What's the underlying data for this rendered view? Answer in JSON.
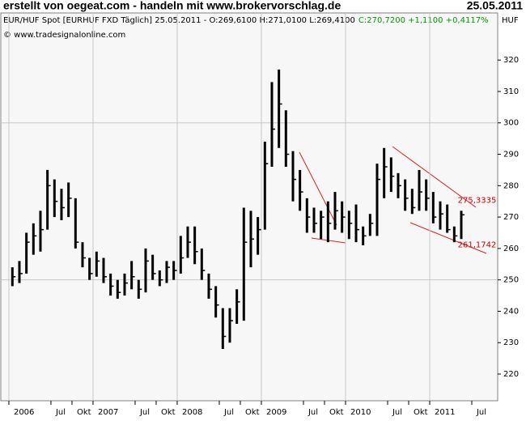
{
  "chart_data": {
    "type": "hlc",
    "title": "erstellt von oegeat.com - handeln mit www.brokervorschlag.de",
    "date": "25.05.2011",
    "instrument": "EUR/HUF Spot [EURHUF FXD  Täglich] 25.05.2011 - O:269,6100 H:271,0100 L:269,4100",
    "change": "C:270,7200 +1,1100 +0,4117%",
    "currency": "HUF",
    "source": "© www.tradesignalonline.com",
    "color": "#000000",
    "x": [
      "2006-01",
      "2006-02",
      "2006-03",
      "2006-04",
      "2006-05",
      "2006-06",
      "2006-07",
      "2006-08",
      "2006-09",
      "2006-10",
      "2006-11",
      "2006-12",
      "2007-01",
      "2007-02",
      "2007-03",
      "2007-04",
      "2007-05",
      "2007-06",
      "2007-07",
      "2007-08",
      "2007-09",
      "2007-10",
      "2007-11",
      "2007-12",
      "2008-01",
      "2008-02",
      "2008-03",
      "2008-04",
      "2008-05",
      "2008-06",
      "2008-07",
      "2008-08",
      "2008-09",
      "2008-10",
      "2008-11",
      "2008-12",
      "2009-01",
      "2009-02",
      "2009-03",
      "2009-04",
      "2009-05",
      "2009-06",
      "2009-07",
      "2009-08",
      "2009-09",
      "2009-10",
      "2009-11",
      "2009-12",
      "2010-01",
      "2010-02",
      "2010-03",
      "2010-04",
      "2010-05",
      "2010-06",
      "2010-07",
      "2010-08",
      "2010-09",
      "2010-10",
      "2010-11",
      "2010-12",
      "2011-01",
      "2011-02",
      "2011-03",
      "2011-04",
      "2011-05"
    ],
    "high": [
      254,
      256,
      265,
      268,
      272,
      285,
      282,
      279,
      281,
      276,
      262,
      257,
      259,
      257,
      252,
      250,
      252,
      256,
      250,
      260,
      258,
      253,
      256,
      256,
      264,
      267,
      267,
      260,
      252,
      248,
      241,
      241,
      247,
      273,
      272,
      270,
      294,
      313,
      317,
      304,
      291,
      285,
      276,
      273,
      272,
      275,
      278,
      275,
      272,
      274,
      267,
      271,
      287,
      292,
      289,
      284,
      282,
      279,
      285,
      282,
      278,
      275,
      274,
      267,
      272
    ],
    "low": [
      248,
      249,
      252,
      258,
      259,
      266,
      270,
      269,
      270,
      260,
      254,
      250,
      251,
      249,
      245,
      244,
      245,
      247,
      244,
      246,
      250,
      248,
      249,
      250,
      252,
      257,
      255,
      250,
      244,
      238,
      228,
      230,
      236,
      237,
      254,
      258,
      266,
      286,
      292,
      286,
      275,
      272,
      265,
      265,
      263,
      262,
      266,
      265,
      263,
      262,
      261,
      264,
      264,
      276,
      278,
      276,
      272,
      271,
      272,
      272,
      268,
      266,
      265,
      262,
      263
    ],
    "close": [
      251,
      252,
      262,
      264,
      266,
      280,
      275,
      273,
      276,
      262,
      257,
      252,
      256,
      251,
      248,
      246,
      249,
      251,
      247,
      256,
      252,
      250,
      254,
      253,
      257,
      262,
      259,
      253,
      247,
      242,
      232,
      237,
      243,
      262,
      263,
      266,
      287,
      298,
      306,
      290,
      282,
      278,
      270,
      268,
      270,
      268,
      272,
      270,
      268,
      266,
      264,
      268,
      282,
      286,
      283,
      280,
      276,
      273,
      278,
      276,
      270,
      271,
      266,
      264,
      270.72
    ],
    "xlim": [
      "2005-12",
      "2011-10"
    ],
    "xticks": [
      {
        "value": "2006-01",
        "label": "2006"
      },
      {
        "value": "2006-07",
        "label": "Jul"
      },
      {
        "value": "2006-10",
        "label": "Okt"
      },
      {
        "value": "2007-01",
        "label": "2007"
      },
      {
        "value": "2007-07",
        "label": "Jul"
      },
      {
        "value": "2007-10",
        "label": "Okt"
      },
      {
        "value": "2008-01",
        "label": "2008"
      },
      {
        "value": "2008-07",
        "label": "Jul"
      },
      {
        "value": "2008-10",
        "label": "Okt"
      },
      {
        "value": "2009-01",
        "label": "2009"
      },
      {
        "value": "2009-07",
        "label": "Jul"
      },
      {
        "value": "2009-10",
        "label": "Okt"
      },
      {
        "value": "2010-01",
        "label": "2010"
      },
      {
        "value": "2010-07",
        "label": "Jul"
      },
      {
        "value": "2010-10",
        "label": "Okt"
      },
      {
        "value": "2011-01",
        "label": "2011"
      },
      {
        "value": "2011-07",
        "label": "Jul"
      }
    ],
    "ylim": [
      211.5,
      335
    ],
    "yticks": [
      220,
      230,
      240,
      250,
      260,
      270,
      280,
      290,
      300,
      310,
      320
    ],
    "annotations": [
      {
        "label": "275,3335",
        "value": 275.3335,
        "x": "2011-04",
        "color": "#cc0000"
      },
      {
        "label": "261,1742",
        "value": 261.1742,
        "x": "2011-04",
        "color": "#cc0000"
      }
    ]
  }
}
